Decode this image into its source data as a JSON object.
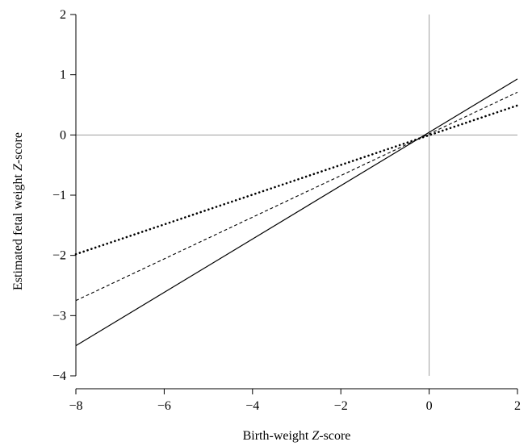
{
  "chart_data": {
    "type": "line",
    "xlabel": {
      "pre": "Birth-weight ",
      "italic": "Z",
      "post": "-score"
    },
    "ylabel": {
      "pre": "Estimated fetal weight ",
      "italic": "Z",
      "post": "-score"
    },
    "xlim": [
      -8,
      2
    ],
    "ylim": [
      -4,
      2
    ],
    "x_ticks": [
      -8,
      -6,
      -4,
      -2,
      0,
      2
    ],
    "y_ticks": [
      -4,
      -3,
      -2,
      -1,
      0,
      1,
      2
    ],
    "x_tick_labels": [
      "−8",
      "−6",
      "−4",
      "−2",
      "0",
      "2"
    ],
    "y_tick_labels": [
      "−4",
      "−3",
      "−2",
      "−1",
      "0",
      "1",
      "2"
    ],
    "reference_lines": {
      "x": 0,
      "y": 0
    },
    "grid": false,
    "series": [
      {
        "style": "solid",
        "x": [
          -8,
          2
        ],
        "y": [
          -3.5,
          0.93
        ]
      },
      {
        "style": "dashed",
        "x": [
          -8,
          2
        ],
        "y": [
          -2.75,
          0.71
        ]
      },
      {
        "style": "dotted",
        "x": [
          -8,
          2
        ],
        "y": [
          -1.98,
          0.49
        ]
      }
    ]
  }
}
